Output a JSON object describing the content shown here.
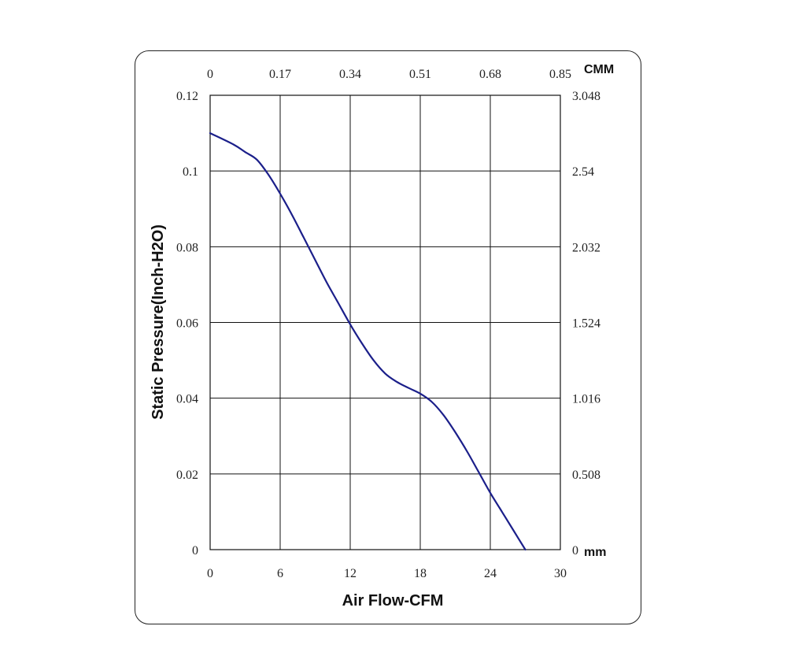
{
  "chart_data": {
    "type": "line",
    "xlabel": "Air Flow-CFM",
    "ylabel": "Static Pressure(Inch-H2O)",
    "xlim": [
      0,
      30
    ],
    "ylim": [
      0,
      0.12
    ],
    "x_ticks": [
      "0",
      "6",
      "12",
      "18",
      "24",
      "30"
    ],
    "y_ticks": [
      "0",
      "0.02",
      "0.04",
      "0.06",
      "0.08",
      "0.1",
      "0.12"
    ],
    "top_axis": {
      "unit": "CMM",
      "ticks": [
        "0",
        "0.17",
        "0.34",
        "0.51",
        "0.68",
        "0.85"
      ]
    },
    "right_axis": {
      "unit": "mm",
      "ticks": [
        "0",
        "0.508",
        "1.016",
        "1.524",
        "2.032",
        "2.54",
        "3.048"
      ]
    },
    "grid": true,
    "series": [
      {
        "color": "#1b1f8a",
        "x": [
          0,
          2,
          3,
          4,
          5,
          6,
          7,
          8,
          9,
          10,
          11,
          12,
          13,
          14,
          15,
          16,
          17,
          18,
          19,
          20,
          21,
          22,
          23,
          24,
          25,
          26,
          27
        ],
        "y": [
          0.11,
          0.107,
          0.105,
          0.103,
          0.099,
          0.094,
          0.0885,
          0.0825,
          0.0765,
          0.0705,
          0.065,
          0.0595,
          0.0545,
          0.05,
          0.0465,
          0.0443,
          0.0427,
          0.0412,
          0.039,
          0.0355,
          0.031,
          0.026,
          0.0205,
          0.015,
          0.01,
          0.005,
          0.0
        ]
      }
    ]
  }
}
